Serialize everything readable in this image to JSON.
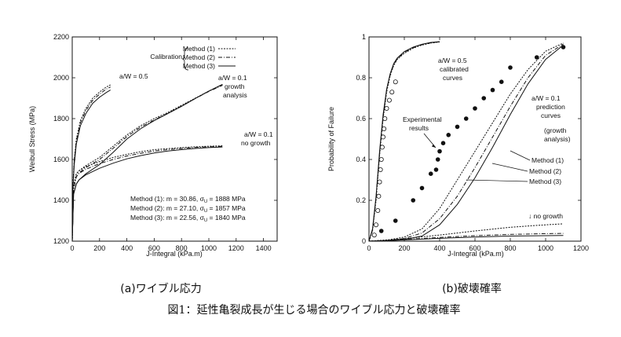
{
  "figure_caption": "図1：延性亀裂成長が生じる場合のワイブル応力と破壊確率",
  "colors": {
    "ink": "#111111",
    "background": "#ffffff"
  },
  "chart_data": [
    {
      "type": "line",
      "subcaption": "(a)ワイブル応力",
      "xlabel": "J-Integral (kPa.m)",
      "ylabel": "Weibull Stress (MPa)",
      "xlim": [
        0,
        1500
      ],
      "ylim": [
        1200,
        2200
      ],
      "xticks": [
        "0",
        "200",
        "400",
        "600",
        "800",
        "1000",
        "1200",
        "1400"
      ],
      "yticks": [
        "1200",
        "1400",
        "1600",
        "1800",
        "2000",
        "2200"
      ],
      "legend": {
        "title": "Calibration",
        "placement": "top-right",
        "entries": [
          "Method (1)",
          "Method (2)",
          "Method (3)"
        ]
      },
      "annotations": {
        "aw05": "a/W = 0.5",
        "aw01_growth": [
          "a/W = 0.1",
          "growth",
          "analysis"
        ],
        "aw01_nogrowth": [
          "a/W = 0.1",
          "no growth"
        ],
        "params": [
          {
            "pre": "Method (1):  m = 30.86,  σ",
            "sub": "U",
            "post": " = 1888 MPa"
          },
          {
            "pre": "Method (2):  m = 27.10,  σ",
            "sub": "U",
            "post": " = 1857 MPa"
          },
          {
            "pre": "Method (3):  m = 22.56,  σ",
            "sub": "U",
            "post": " = 1840 MPa"
          }
        ]
      },
      "series": [
        {
          "group": "a/W=0.5",
          "method": 1,
          "x": [
            0,
            5,
            15,
            30,
            60,
            100,
            150,
            200,
            250,
            280
          ],
          "y": [
            1200,
            1480,
            1600,
            1700,
            1790,
            1850,
            1900,
            1930,
            1955,
            1965
          ]
        },
        {
          "group": "a/W=0.5",
          "method": 2,
          "x": [
            0,
            5,
            15,
            30,
            60,
            100,
            150,
            200,
            250,
            280
          ],
          "y": [
            1200,
            1470,
            1590,
            1690,
            1780,
            1840,
            1890,
            1920,
            1945,
            1955
          ]
        },
        {
          "group": "a/W=0.5",
          "method": 3,
          "x": [
            0,
            5,
            15,
            30,
            60,
            100,
            150,
            200,
            250,
            280
          ],
          "y": [
            1200,
            1460,
            1575,
            1675,
            1765,
            1825,
            1875,
            1905,
            1928,
            1940
          ]
        },
        {
          "group": "a/W=0.1 growth",
          "method": 1,
          "x": [
            0,
            10,
            30,
            50,
            100,
            200,
            300,
            400,
            500,
            600,
            700,
            800,
            900,
            1000,
            1100
          ],
          "y": [
            1200,
            1470,
            1530,
            1545,
            1570,
            1610,
            1665,
            1720,
            1765,
            1800,
            1830,
            1865,
            1900,
            1935,
            1965
          ]
        },
        {
          "group": "a/W=0.1 growth",
          "method": 2,
          "x": [
            0,
            10,
            30,
            50,
            100,
            200,
            300,
            400,
            500,
            600,
            700,
            800,
            900,
            1000,
            1100
          ],
          "y": [
            1200,
            1455,
            1515,
            1535,
            1560,
            1600,
            1655,
            1712,
            1758,
            1793,
            1826,
            1862,
            1898,
            1933,
            1963
          ]
        },
        {
          "group": "a/W=0.1 growth",
          "method": 3,
          "x": [
            0,
            10,
            30,
            50,
            100,
            200,
            300,
            400,
            500,
            600,
            700,
            800,
            900,
            1000,
            1100
          ],
          "y": [
            1200,
            1430,
            1480,
            1500,
            1530,
            1575,
            1635,
            1700,
            1750,
            1790,
            1825,
            1860,
            1898,
            1935,
            1968
          ]
        },
        {
          "group": "a/W=0.1 no growth",
          "method": 1,
          "x": [
            0,
            10,
            30,
            50,
            100,
            200,
            300,
            400,
            500,
            600,
            700,
            800,
            900,
            1000,
            1100
          ],
          "y": [
            1200,
            1470,
            1530,
            1545,
            1565,
            1590,
            1610,
            1625,
            1638,
            1648,
            1653,
            1658,
            1662,
            1665,
            1667
          ]
        },
        {
          "group": "a/W=0.1 no growth",
          "method": 2,
          "x": [
            0,
            10,
            30,
            50,
            100,
            200,
            300,
            400,
            500,
            600,
            700,
            800,
            900,
            1000,
            1100
          ],
          "y": [
            1200,
            1455,
            1515,
            1532,
            1552,
            1580,
            1600,
            1617,
            1630,
            1641,
            1648,
            1654,
            1659,
            1662,
            1664
          ]
        },
        {
          "group": "a/W=0.1 no growth",
          "method": 3,
          "x": [
            0,
            10,
            30,
            50,
            100,
            200,
            300,
            400,
            500,
            600,
            700,
            800,
            900,
            1000,
            1100
          ],
          "y": [
            1200,
            1430,
            1480,
            1500,
            1525,
            1557,
            1582,
            1603,
            1619,
            1632,
            1641,
            1648,
            1654,
            1658,
            1661
          ]
        }
      ]
    },
    {
      "type": "line",
      "subcaption": "(b)破壊確率",
      "xlabel": "J-Integral (kPa.m)",
      "ylabel": "Probability of Failure",
      "xlim": [
        0,
        1200
      ],
      "ylim": [
        0,
        1
      ],
      "xticks": [
        "0",
        "200",
        "400",
        "600",
        "800",
        "1000",
        "1200"
      ],
      "yticks": [
        "0",
        "0.2",
        "0.4",
        "0.6",
        "0.8",
        "1"
      ],
      "annotations": {
        "aw05": [
          "a/W = 0.5",
          "calibrated",
          "curves"
        ],
        "aw01": [
          "a/W = 0.1",
          "prediction",
          "curves"
        ],
        "growth_analysis": [
          "(growth",
          "analysis)"
        ],
        "experimental": [
          "Experimental",
          "results"
        ],
        "methods": [
          "Method (1)",
          "Method (2)",
          "Method (3)"
        ],
        "no_growth": "↓ no growth"
      },
      "series": [
        {
          "group": "a/W=0.5 calibrated",
          "method": 1,
          "x": [
            0,
            20,
            40,
            60,
            80,
            100,
            120,
            140,
            160,
            200,
            250,
            300,
            350,
            400
          ],
          "y": [
            0,
            0.05,
            0.2,
            0.42,
            0.6,
            0.73,
            0.81,
            0.86,
            0.89,
            0.92,
            0.945,
            0.96,
            0.97,
            0.975
          ]
        },
        {
          "group": "a/W=0.5 calibrated",
          "method": 2,
          "x": [
            0,
            20,
            40,
            60,
            80,
            100,
            120,
            140,
            160,
            200,
            250,
            300,
            350,
            400
          ],
          "y": [
            0,
            0.055,
            0.21,
            0.43,
            0.61,
            0.74,
            0.815,
            0.865,
            0.893,
            0.925,
            0.947,
            0.962,
            0.971,
            0.976
          ]
        },
        {
          "group": "a/W=0.5 calibrated",
          "method": 3,
          "x": [
            0,
            20,
            40,
            60,
            80,
            100,
            120,
            140,
            160,
            200,
            250,
            300,
            350,
            400
          ],
          "y": [
            0,
            0.06,
            0.22,
            0.44,
            0.62,
            0.745,
            0.82,
            0.87,
            0.897,
            0.928,
            0.95,
            0.964,
            0.973,
            0.977
          ]
        },
        {
          "group": "a/W=0.1 growth prediction",
          "method": 1,
          "x": [
            0,
            100,
            200,
            300,
            400,
            500,
            600,
            700,
            800,
            900,
            1000,
            1100
          ],
          "y": [
            0,
            0.005,
            0.02,
            0.06,
            0.16,
            0.3,
            0.44,
            0.58,
            0.72,
            0.84,
            0.93,
            0.97
          ]
        },
        {
          "group": "a/W=0.1 growth prediction",
          "method": 2,
          "x": [
            0,
            100,
            200,
            300,
            400,
            500,
            600,
            700,
            800,
            900,
            1000,
            1100
          ],
          "y": [
            0,
            0.003,
            0.013,
            0.04,
            0.11,
            0.22,
            0.36,
            0.51,
            0.66,
            0.8,
            0.91,
            0.965
          ]
        },
        {
          "group": "a/W=0.1 growth prediction",
          "method": 3,
          "x": [
            0,
            100,
            200,
            300,
            400,
            500,
            600,
            700,
            800,
            900,
            1000,
            1100
          ],
          "y": [
            0,
            0.002,
            0.008,
            0.025,
            0.08,
            0.18,
            0.31,
            0.46,
            0.62,
            0.77,
            0.89,
            0.96
          ]
        },
        {
          "group": "a/W=0.1 no growth",
          "method": 1,
          "x": [
            0,
            200,
            400,
            600,
            800,
            1000,
            1100
          ],
          "y": [
            0,
            0.012,
            0.03,
            0.05,
            0.068,
            0.08,
            0.085
          ]
        },
        {
          "group": "a/W=0.1 no growth",
          "method": 2,
          "x": [
            0,
            200,
            400,
            600,
            800,
            1000,
            1100
          ],
          "y": [
            0,
            0.008,
            0.018,
            0.027,
            0.033,
            0.037,
            0.038
          ]
        },
        {
          "group": "a/W=0.1 no growth",
          "method": 3,
          "x": [
            0,
            200,
            400,
            600,
            800,
            1000,
            1100
          ],
          "y": [
            0,
            0.006,
            0.014,
            0.02,
            0.025,
            0.027,
            0.028
          ]
        }
      ],
      "experimental_aw05": {
        "marker": "open-circle",
        "x": [
          30,
          40,
          50,
          55,
          60,
          65,
          70,
          75,
          80,
          85,
          90,
          100,
          115,
          130,
          150
        ],
        "y": [
          0.03,
          0.08,
          0.15,
          0.22,
          0.29,
          0.35,
          0.4,
          0.46,
          0.51,
          0.55,
          0.6,
          0.65,
          0.69,
          0.73,
          0.78
        ]
      },
      "experimental_aw01": {
        "marker": "filled-circle",
        "x": [
          70,
          150,
          250,
          300,
          350,
          380,
          390,
          400,
          420,
          450,
          500,
          550,
          600,
          650,
          700,
          750,
          800,
          950,
          1100
        ],
        "y": [
          0.05,
          0.1,
          0.2,
          0.26,
          0.33,
          0.35,
          0.4,
          0.44,
          0.48,
          0.52,
          0.56,
          0.6,
          0.65,
          0.7,
          0.74,
          0.78,
          0.85,
          0.9,
          0.95
        ]
      }
    }
  ]
}
